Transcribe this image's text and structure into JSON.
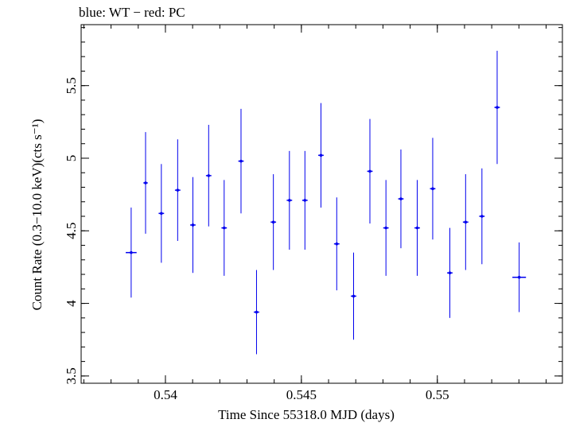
{
  "chart_data": {
    "type": "scatter",
    "title": "blue: WT − red: PC",
    "xlabel": "Time Since 55318.0 MJD (days)",
    "ylabel": "Count Rate (0.3−10.0 keV)(cts s⁻¹)",
    "xlim": [
      0.5369,
      0.5546
    ],
    "ylim": [
      3.45,
      5.92
    ],
    "x_ticks": [
      {
        "value": 0.54,
        "label": "0.54"
      },
      {
        "value": 0.545,
        "label": "0.545"
      },
      {
        "value": 0.55,
        "label": "0.55"
      }
    ],
    "x_minor_step": 0.001,
    "y_ticks": [
      {
        "value": 3.5,
        "label": "3.5"
      },
      {
        "value": 4,
        "label": "4"
      },
      {
        "value": 4.5,
        "label": "4.5"
      },
      {
        "value": 5,
        "label": "5"
      },
      {
        "value": 5.5,
        "label": "5.5"
      }
    ],
    "y_minor_step": 0.1,
    "grid": false,
    "series": [
      {
        "color": "#0000ee",
        "points": [
          {
            "x": 0.53874,
            "xerr": 0.0002,
            "y": 4.35,
            "yerr": 0.31
          },
          {
            "x": 0.53927,
            "xerr": 8e-05,
            "y": 4.83,
            "yerr": 0.35
          },
          {
            "x": 0.53985,
            "xerr": 0.0001,
            "y": 4.62,
            "yerr": 0.34
          },
          {
            "x": 0.54045,
            "xerr": 0.0001,
            "y": 4.78,
            "yerr": 0.35
          },
          {
            "x": 0.54101,
            "xerr": 0.0001,
            "y": 4.54,
            "yerr": 0.33
          },
          {
            "x": 0.54159,
            "xerr": 0.0001,
            "y": 4.88,
            "yerr": 0.35
          },
          {
            "x": 0.54216,
            "xerr": 0.0001,
            "y": 4.52,
            "yerr": 0.33
          },
          {
            "x": 0.54278,
            "xerr": 0.0001,
            "y": 4.98,
            "yerr": 0.36
          },
          {
            "x": 0.54335,
            "xerr": 0.0001,
            "y": 3.94,
            "yerr": 0.29
          },
          {
            "x": 0.54397,
            "xerr": 0.0001,
            "y": 4.56,
            "yerr": 0.33
          },
          {
            "x": 0.54456,
            "xerr": 0.0001,
            "y": 4.71,
            "yerr": 0.34
          },
          {
            "x": 0.54513,
            "xerr": 0.0001,
            "y": 4.71,
            "yerr": 0.34
          },
          {
            "x": 0.54572,
            "xerr": 0.0001,
            "y": 5.02,
            "yerr": 0.36
          },
          {
            "x": 0.5463,
            "xerr": 0.0001,
            "y": 4.41,
            "yerr": 0.32
          },
          {
            "x": 0.54692,
            "xerr": 0.0001,
            "y": 4.05,
            "yerr": 0.3
          },
          {
            "x": 0.54752,
            "xerr": 0.0001,
            "y": 4.91,
            "yerr": 0.36
          },
          {
            "x": 0.54811,
            "xerr": 0.0001,
            "y": 4.52,
            "yerr": 0.33
          },
          {
            "x": 0.54866,
            "xerr": 0.0001,
            "y": 4.72,
            "yerr": 0.34
          },
          {
            "x": 0.54926,
            "xerr": 0.0001,
            "y": 4.52,
            "yerr": 0.33
          },
          {
            "x": 0.54983,
            "xerr": 0.0001,
            "y": 4.79,
            "yerr": 0.35
          },
          {
            "x": 0.55046,
            "xerr": 0.0001,
            "y": 4.21,
            "yerr": 0.31
          },
          {
            "x": 0.55104,
            "xerr": 0.0001,
            "y": 4.56,
            "yerr": 0.33
          },
          {
            "x": 0.55164,
            "xerr": 0.0001,
            "y": 4.6,
            "yerr": 0.33
          },
          {
            "x": 0.5522,
            "xerr": 0.0001,
            "y": 5.35,
            "yerr": 0.39
          },
          {
            "x": 0.55301,
            "xerr": 0.00025,
            "y": 4.18,
            "yerr": 0.24
          }
        ]
      }
    ]
  }
}
